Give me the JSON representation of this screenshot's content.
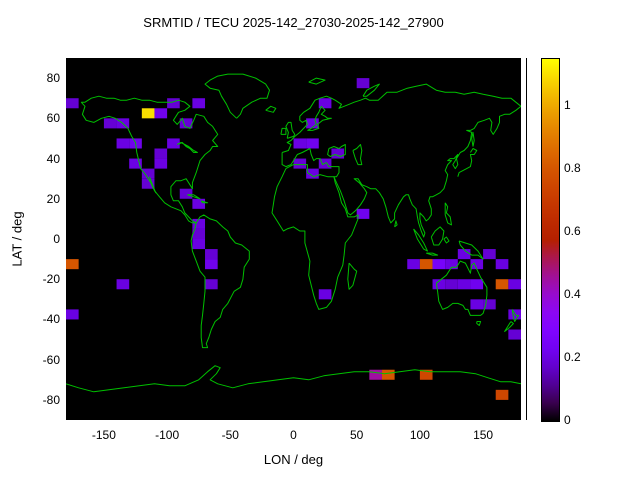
{
  "chart_data": {
    "type": "heatmap",
    "title": "SRMTID / TECU 2025-142_27030-2025-142_27900",
    "xlabel": "LON / deg",
    "ylabel": "LAT / deg",
    "xlim": [
      -180,
      180
    ],
    "ylim": [
      -90,
      90
    ],
    "xticks": [
      -150,
      -100,
      -50,
      0,
      50,
      100,
      150
    ],
    "yticks": [
      -80,
      -60,
      -40,
      -20,
      0,
      20,
      40,
      60,
      80
    ],
    "grid": false,
    "background_color": "#000000",
    "coastline_color": "#00c000",
    "colorbar": {
      "min": 0,
      "max": 1.15,
      "tick_values": [
        0,
        0.2,
        0.4,
        0.6,
        0.8,
        1
      ],
      "palette": "gnuplot pm3d default (black - violet - red - orange - yellow)",
      "position": "right"
    },
    "cell_size": {
      "lon_deg": 10,
      "lat_deg": 5
    },
    "cells_format": [
      "lon_center_deg",
      "lat_center_deg",
      "tecu_value"
    ],
    "cells": [
      [
        -175,
        67.5,
        0.18
      ],
      [
        -115,
        62.5,
        1.1
      ],
      [
        -105,
        62.5,
        0.22
      ],
      [
        -95,
        67.5,
        0.18
      ],
      [
        -75,
        67.5,
        0.2
      ],
      [
        25,
        67.5,
        0.2
      ],
      [
        55,
        77.5,
        0.18
      ],
      [
        -145,
        57.5,
        0.18
      ],
      [
        -135,
        57.5,
        0.2
      ],
      [
        -85,
        57.5,
        0.18
      ],
      [
        15,
        57.5,
        0.2
      ],
      [
        -135,
        47.5,
        0.2
      ],
      [
        -125,
        47.5,
        0.22
      ],
      [
        -105,
        42.5,
        0.18
      ],
      [
        -95,
        47.5,
        0.2
      ],
      [
        5,
        47.5,
        0.2
      ],
      [
        15,
        47.5,
        0.22
      ],
      [
        35,
        42.5,
        0.18
      ],
      [
        -125,
        37.5,
        0.2
      ],
      [
        -115,
        32.5,
        0.18
      ],
      [
        -105,
        37.5,
        0.2
      ],
      [
        5,
        37.5,
        0.18
      ],
      [
        15,
        32.5,
        0.2
      ],
      [
        25,
        37.5,
        0.18
      ],
      [
        -115,
        27.5,
        0.18
      ],
      [
        -85,
        22.5,
        0.18
      ],
      [
        -75,
        17.5,
        0.2
      ],
      [
        55,
        12.5,
        0.22
      ],
      [
        -75,
        7.5,
        0.2
      ],
      [
        -75,
        2.5,
        0.18
      ],
      [
        -75,
        -2.5,
        0.2
      ],
      [
        -65,
        -7.5,
        0.18
      ],
      [
        135,
        -7.5,
        0.2
      ],
      [
        155,
        -7.5,
        0.18
      ],
      [
        -175,
        -12.5,
        0.8
      ],
      [
        -65,
        -12.5,
        0.22
      ],
      [
        95,
        -12.5,
        0.2
      ],
      [
        105,
        -12.5,
        0.8
      ],
      [
        115,
        -12.5,
        0.25
      ],
      [
        125,
        -12.5,
        0.2
      ],
      [
        145,
        -12.5,
        0.2
      ],
      [
        165,
        -12.5,
        0.2
      ],
      [
        -135,
        -22.5,
        0.2
      ],
      [
        -65,
        -22.5,
        0.18
      ],
      [
        25,
        -27.5,
        0.2
      ],
      [
        115,
        -22.5,
        0.2
      ],
      [
        125,
        -22.5,
        0.18
      ],
      [
        135,
        -22.5,
        0.2
      ],
      [
        145,
        -22.5,
        0.22
      ],
      [
        165,
        -22.5,
        0.8
      ],
      [
        175,
        -22.5,
        0.2
      ],
      [
        -175,
        -37.5,
        0.2
      ],
      [
        145,
        -32.5,
        0.2
      ],
      [
        155,
        -32.5,
        0.18
      ],
      [
        175,
        -37.5,
        0.2
      ],
      [
        175,
        -47.5,
        0.18
      ],
      [
        65,
        -67.5,
        0.45
      ],
      [
        75,
        -67.5,
        0.8
      ],
      [
        105,
        -67.5,
        0.75
      ],
      [
        165,
        -77.5,
        0.75
      ]
    ]
  }
}
